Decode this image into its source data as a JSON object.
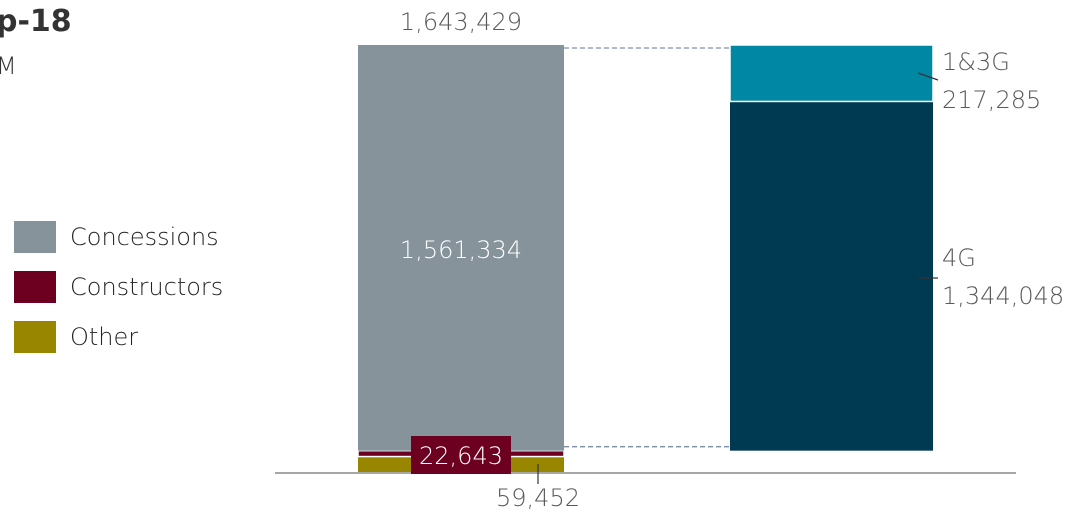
{
  "header": {
    "title_fragment": "p-18",
    "subtitle_fragment": "M"
  },
  "chart_data": {
    "type": "bar",
    "stacked": true,
    "title": "",
    "xlabel": "",
    "ylabel": "",
    "ylim": [
      0,
      1643429
    ],
    "legend": [
      {
        "name": "Concessions",
        "color": "#86939b"
      },
      {
        "name": "Constructors",
        "color": "#6d0020"
      },
      {
        "name": "Other",
        "color": "#988600"
      }
    ],
    "bars": [
      {
        "total_label": "1,643,429",
        "segments": [
          {
            "series": "Other",
            "value": 59452,
            "label": "59,452",
            "color": "#988600"
          },
          {
            "series": "Constructors",
            "value": 22643,
            "label": "22,643",
            "color": "#6d0020"
          },
          {
            "series": "Concessions",
            "value": 1561334,
            "label": "1,561,334",
            "color": "#86939b"
          }
        ]
      },
      {
        "segments": [
          {
            "series": "4G",
            "value": 1344048,
            "label_name": "4G",
            "label_value": "1,344,048",
            "color": "#003a52"
          },
          {
            "series": "1&3G",
            "value": 217285,
            "label_name": "1&3G",
            "label_value": "217,285",
            "color": "#0087a3"
          }
        ]
      }
    ]
  }
}
